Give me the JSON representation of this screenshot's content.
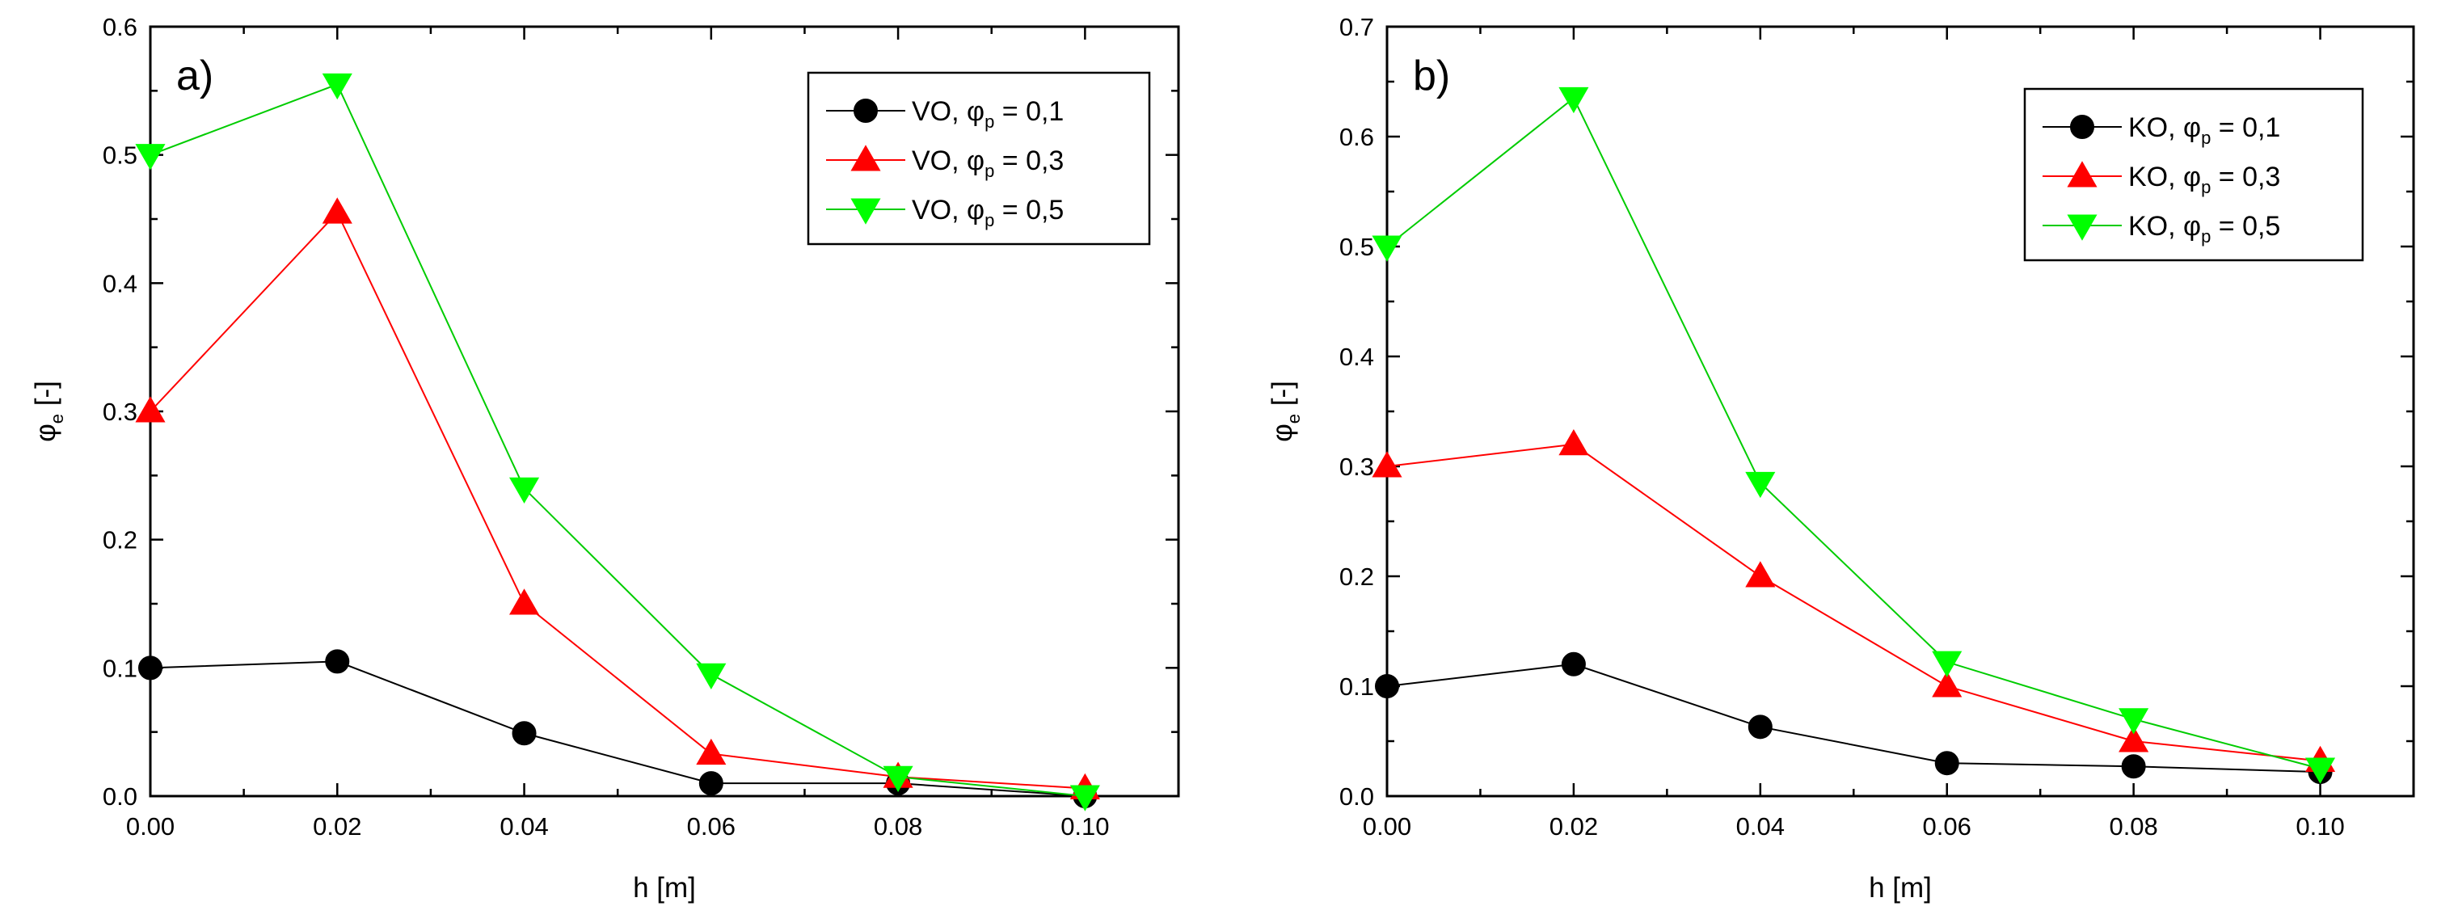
{
  "chart_data": [
    {
      "panel": "a)",
      "type": "line",
      "xlabel": "h [m]",
      "ylabel": {
        "main": "φ",
        "sub": "e",
        "suffix": " [-]"
      },
      "xlim": [
        0.0,
        0.11
      ],
      "ylim": [
        0.0,
        0.6
      ],
      "xticks": [
        0.0,
        0.02,
        0.04,
        0.06,
        0.08,
        0.1
      ],
      "xtick_labels": [
        "0.00",
        "0.02",
        "0.04",
        "0.06",
        "0.08",
        "0.10"
      ],
      "yticks": [
        0.0,
        0.1,
        0.2,
        0.3,
        0.4,
        0.5,
        0.6
      ],
      "ytick_labels": [
        "0.0",
        "0.1",
        "0.2",
        "0.3",
        "0.4",
        "0.5",
        "0.6"
      ],
      "legend_position": "top-right",
      "series": [
        {
          "name": {
            "prefix": "VO, ",
            "sym": "φ",
            "sub": "p",
            "suffix": " = 0,1"
          },
          "line_color": "#000000",
          "marker_color": "#000000",
          "marker": "circle",
          "x": [
            0.0,
            0.02,
            0.04,
            0.06,
            0.08,
            0.1
          ],
          "y": [
            0.1,
            0.105,
            0.049,
            0.01,
            0.01,
            0.0
          ]
        },
        {
          "name": {
            "prefix": "VO, ",
            "sym": "φ",
            "sub": "p",
            "suffix": " = 0,3"
          },
          "line_color": "#ff0000",
          "marker_color": "#ff0000",
          "marker": "triangle-up",
          "x": [
            0.0,
            0.02,
            0.04,
            0.06,
            0.08,
            0.1
          ],
          "y": [
            0.3,
            0.455,
            0.15,
            0.033,
            0.015,
            0.006
          ]
        },
        {
          "name": {
            "prefix": "VO, ",
            "sym": "φ",
            "sub": "p",
            "suffix": " = 0,5"
          },
          "line_color": "#00cc00",
          "marker_color": "#00ff00",
          "marker": "triangle-down",
          "x": [
            0.0,
            0.02,
            0.04,
            0.06,
            0.08,
            0.1
          ],
          "y": [
            0.5,
            0.555,
            0.24,
            0.095,
            0.015,
            0.0
          ]
        }
      ]
    },
    {
      "panel": "b)",
      "type": "line",
      "xlabel": "h [m]",
      "ylabel": {
        "main": "φ",
        "sub": "e",
        "suffix": " [-]"
      },
      "xlim": [
        0.0,
        0.11
      ],
      "ylim": [
        0.0,
        0.7
      ],
      "xticks": [
        0.0,
        0.02,
        0.04,
        0.06,
        0.08,
        0.1
      ],
      "xtick_labels": [
        "0.00",
        "0.02",
        "0.04",
        "0.06",
        "0.08",
        "0.10"
      ],
      "yticks": [
        0.0,
        0.1,
        0.2,
        0.3,
        0.4,
        0.5,
        0.6,
        0.7
      ],
      "ytick_labels": [
        "0.0",
        "0.1",
        "0.2",
        "0.3",
        "0.4",
        "0.5",
        "0.6",
        "0.7"
      ],
      "legend_position": "top-right",
      "series": [
        {
          "name": {
            "prefix": "KO, ",
            "sym": "φ",
            "sub": "p",
            "suffix": " = 0,1"
          },
          "line_color": "#000000",
          "marker_color": "#000000",
          "marker": "circle",
          "x": [
            0.0,
            0.02,
            0.04,
            0.06,
            0.08,
            0.1
          ],
          "y": [
            0.1,
            0.12,
            0.063,
            0.03,
            0.027,
            0.022
          ]
        },
        {
          "name": {
            "prefix": "KO, ",
            "sym": "φ",
            "sub": "p",
            "suffix": " = 0,3"
          },
          "line_color": "#ff0000",
          "marker_color": "#ff0000",
          "marker": "triangle-up",
          "x": [
            0.0,
            0.02,
            0.04,
            0.06,
            0.08,
            0.1
          ],
          "y": [
            0.3,
            0.32,
            0.2,
            0.1,
            0.05,
            0.032
          ]
        },
        {
          "name": {
            "prefix": "KO, ",
            "sym": "φ",
            "sub": "p",
            "suffix": " = 0,5"
          },
          "line_color": "#00cc00",
          "marker_color": "#00ff00",
          "marker": "triangle-down",
          "x": [
            0.0,
            0.02,
            0.04,
            0.06,
            0.08,
            0.1
          ],
          "y": [
            0.5,
            0.635,
            0.285,
            0.122,
            0.07,
            0.025
          ]
        }
      ]
    }
  ]
}
